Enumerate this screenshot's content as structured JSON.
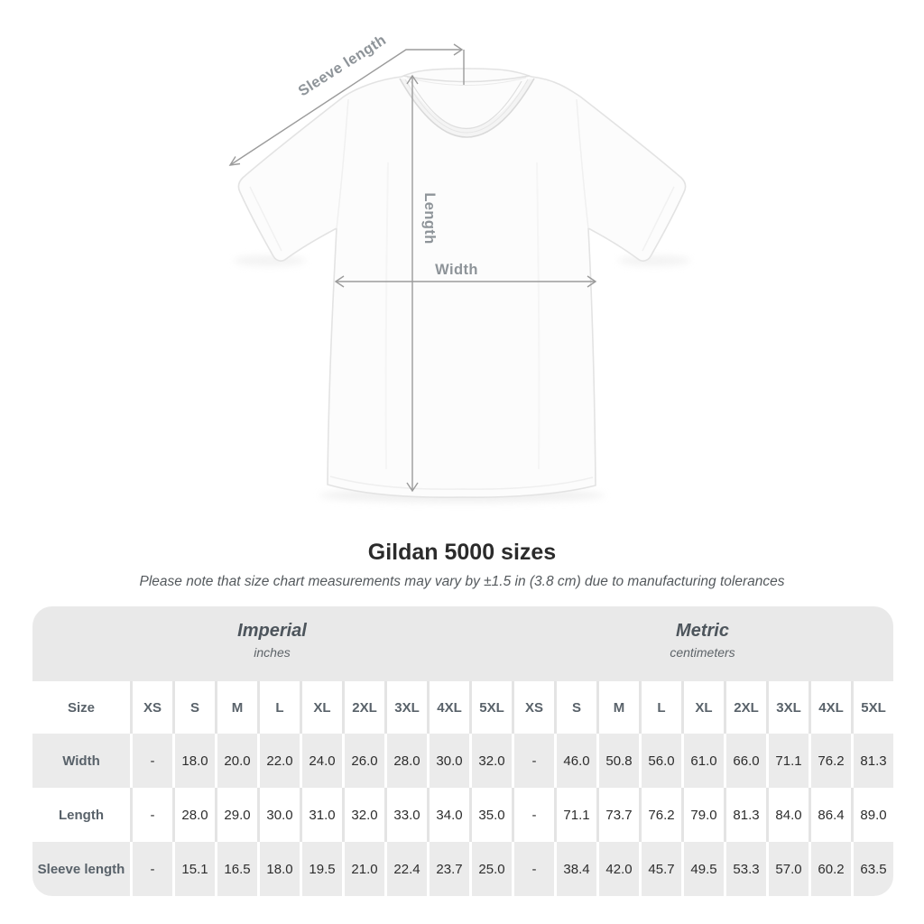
{
  "title": "Gildan 5000 sizes",
  "subtitle": "Please note that size chart measurements may vary by ±1.5 in (3.8 cm) due to manufacturing tolerances",
  "diagram": {
    "labels": {
      "sleeve_length": "Sleeve length",
      "length": "Length",
      "width": "Width"
    }
  },
  "colors": {
    "dimension_line": "#9b9b9b",
    "diagram_label": "#8e9499",
    "title_text": "#2b2b2b",
    "subtitle_text": "#54595d",
    "table_header_band": "#e9e9e9",
    "row_alternate": "#ebebeb",
    "separator_light": "#e4e4e4",
    "separator_white": "#ffffff",
    "header_text": "#4d555c",
    "label_text": "#59626a",
    "value_text": "#2d2d2d"
  },
  "table": {
    "unit_groups": [
      {
        "name": "Imperial",
        "unit": "inches"
      },
      {
        "name": "Metric",
        "unit": "centimeters"
      }
    ],
    "size_header_label": "Size",
    "size_columns": [
      "XS",
      "S",
      "M",
      "L",
      "XL",
      "2XL",
      "3XL",
      "4XL",
      "5XL",
      "XS",
      "S",
      "M",
      "L",
      "XL",
      "2XL",
      "3XL",
      "4XL",
      "5XL"
    ],
    "rows": [
      {
        "label": "Width",
        "values": [
          "-",
          "18.0",
          "20.0",
          "22.0",
          "24.0",
          "26.0",
          "28.0",
          "30.0",
          "32.0",
          "-",
          "46.0",
          "50.8",
          "56.0",
          "61.0",
          "66.0",
          "71.1",
          "76.2",
          "81.3"
        ]
      },
      {
        "label": "Length",
        "values": [
          "-",
          "28.0",
          "29.0",
          "30.0",
          "31.0",
          "32.0",
          "33.0",
          "34.0",
          "35.0",
          "-",
          "71.1",
          "73.7",
          "76.2",
          "79.0",
          "81.3",
          "84.0",
          "86.4",
          "89.0"
        ]
      },
      {
        "label": "Sleeve length",
        "values": [
          "-",
          "15.1",
          "16.5",
          "18.0",
          "19.5",
          "21.0",
          "22.4",
          "23.7",
          "25.0",
          "-",
          "38.4",
          "42.0",
          "45.7",
          "49.5",
          "53.3",
          "57.0",
          "60.2",
          "63.5"
        ]
      }
    ]
  }
}
